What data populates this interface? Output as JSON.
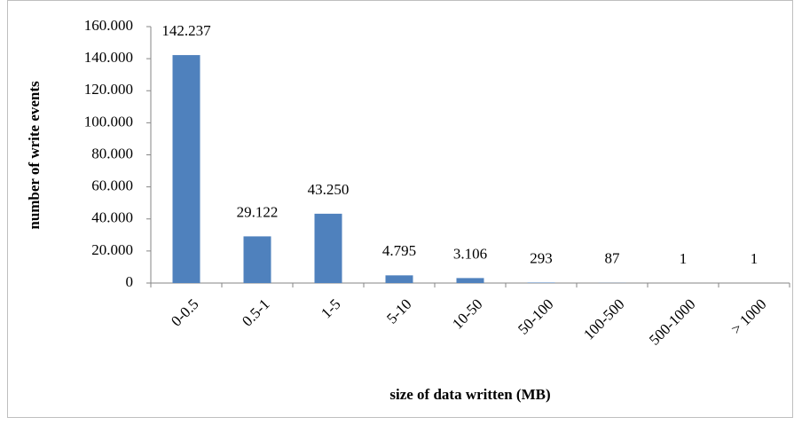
{
  "chart_data": {
    "type": "bar",
    "x_label": "size of data written (MB)",
    "y_label": "number of write events",
    "categories": [
      "0-0.5",
      "0.5-1",
      "1-5",
      "5-10",
      "10-50",
      "50-100",
      "100-500",
      "500-1000",
      "> 1000"
    ],
    "values": [
      142237,
      29122,
      43250,
      4795,
      3106,
      293,
      87,
      1,
      1
    ],
    "value_labels": [
      "142.237",
      "29.122",
      "43.250",
      "4.795",
      "3.106",
      "293",
      "87",
      "1",
      "1"
    ],
    "color": "#4f81bd",
    "ylim": [
      0,
      160000
    ],
    "yticks": [
      0,
      {
        "value": 20000,
        "label": "20.000"
      },
      {
        "value": 40000,
        "label": "40.000"
      },
      {
        "value": 60000,
        "label": "60.000"
      },
      {
        "value": 80000,
        "label": "80.000"
      },
      {
        "value": 100000,
        "label": "100.000"
      },
      {
        "value": 120000,
        "label": "120.000"
      },
      {
        "value": 140000,
        "label": "140.000"
      },
      {
        "value": 160000,
        "label": "160.000"
      }
    ],
    "grid": false
  }
}
